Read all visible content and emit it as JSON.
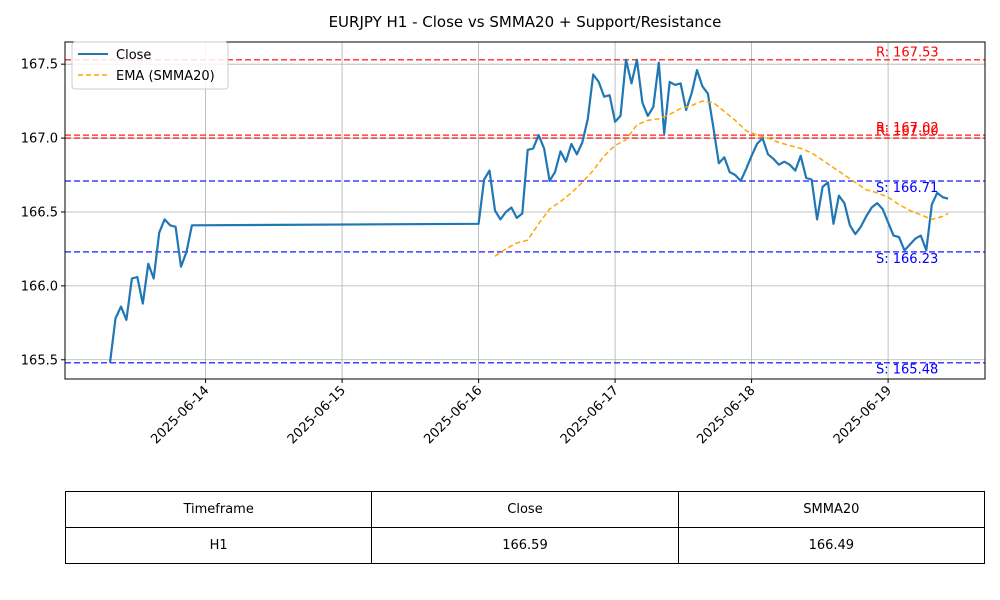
{
  "chart_data": {
    "type": "line",
    "title": "EURJPY H1 - Close vs SMMA20 + Support/Resistance",
    "x_ticks": [
      "2025-06-14",
      "2025-06-15",
      "2025-06-16",
      "2025-06-17",
      "2025-06-18",
      "2025-06-19"
    ],
    "y_ticks": [
      "165.5",
      "166.0",
      "166.5",
      "167.0",
      "167.5"
    ],
    "ylim": [
      165.37,
      167.65
    ],
    "xlim_days_from_2025_06_13": [
      -0.03,
      6.71
    ],
    "grid": true,
    "legend_position": "top-left",
    "series": [
      {
        "name": "Close",
        "color": "#1f77b4",
        "style": "solid",
        "points": [
          [
            0.3,
            165.48
          ],
          [
            0.34,
            165.78
          ],
          [
            0.38,
            165.86
          ],
          [
            0.42,
            165.77
          ],
          [
            0.46,
            166.05
          ],
          [
            0.5,
            166.06
          ],
          [
            0.54,
            165.88
          ],
          [
            0.58,
            166.15
          ],
          [
            0.62,
            166.05
          ],
          [
            0.66,
            166.36
          ],
          [
            0.7,
            166.45
          ],
          [
            0.74,
            166.41
          ],
          [
            0.78,
            166.4
          ],
          [
            0.82,
            166.13
          ],
          [
            0.86,
            166.23
          ],
          [
            0.9,
            166.41
          ],
          [
            3.0,
            166.42
          ],
          [
            3.04,
            166.72
          ],
          [
            3.08,
            166.78
          ],
          [
            3.12,
            166.51
          ],
          [
            3.16,
            166.45
          ],
          [
            3.2,
            166.5
          ],
          [
            3.24,
            166.53
          ],
          [
            3.28,
            166.46
          ],
          [
            3.32,
            166.49
          ],
          [
            3.36,
            166.92
          ],
          [
            3.4,
            166.93
          ],
          [
            3.44,
            167.02
          ],
          [
            3.48,
            166.93
          ],
          [
            3.52,
            166.71
          ],
          [
            3.56,
            166.77
          ],
          [
            3.6,
            166.91
          ],
          [
            3.64,
            166.84
          ],
          [
            3.68,
            166.96
          ],
          [
            3.72,
            166.89
          ],
          [
            3.76,
            166.97
          ],
          [
            3.8,
            167.13
          ],
          [
            3.84,
            167.43
          ],
          [
            3.88,
            167.38
          ],
          [
            3.92,
            167.28
          ],
          [
            3.96,
            167.29
          ],
          [
            4.0,
            167.11
          ],
          [
            4.04,
            167.15
          ],
          [
            4.08,
            167.53
          ],
          [
            4.12,
            167.37
          ],
          [
            4.16,
            167.53
          ],
          [
            4.2,
            167.24
          ],
          [
            4.24,
            167.15
          ],
          [
            4.28,
            167.21
          ],
          [
            4.32,
            167.51
          ],
          [
            4.36,
            167.03
          ],
          [
            4.4,
            167.38
          ],
          [
            4.44,
            167.36
          ],
          [
            4.48,
            167.37
          ],
          [
            4.52,
            167.19
          ],
          [
            4.56,
            167.3
          ],
          [
            4.6,
            167.46
          ],
          [
            4.64,
            167.35
          ],
          [
            4.68,
            167.3
          ],
          [
            4.72,
            167.07
          ],
          [
            4.76,
            166.83
          ],
          [
            4.8,
            166.87
          ],
          [
            4.84,
            166.77
          ],
          [
            4.88,
            166.75
          ],
          [
            4.92,
            166.71
          ],
          [
            4.96,
            166.79
          ],
          [
            5.0,
            166.88
          ],
          [
            5.04,
            166.96
          ],
          [
            5.08,
            167.0
          ],
          [
            5.12,
            166.89
          ],
          [
            5.16,
            166.86
          ],
          [
            5.2,
            166.82
          ],
          [
            5.24,
            166.84
          ],
          [
            5.28,
            166.82
          ],
          [
            5.32,
            166.78
          ],
          [
            5.36,
            166.88
          ],
          [
            5.4,
            166.73
          ],
          [
            5.44,
            166.72
          ],
          [
            5.48,
            166.45
          ],
          [
            5.52,
            166.67
          ],
          [
            5.56,
            166.7
          ],
          [
            5.6,
            166.42
          ],
          [
            5.64,
            166.61
          ],
          [
            5.68,
            166.56
          ],
          [
            5.72,
            166.41
          ],
          [
            5.76,
            166.35
          ],
          [
            5.8,
            166.4
          ],
          [
            5.84,
            166.47
          ],
          [
            5.88,
            166.53
          ],
          [
            5.92,
            166.56
          ],
          [
            5.96,
            166.52
          ],
          [
            6.0,
            166.43
          ],
          [
            6.04,
            166.34
          ],
          [
            6.08,
            166.33
          ],
          [
            6.12,
            166.24
          ],
          [
            6.16,
            166.28
          ],
          [
            6.2,
            166.32
          ],
          [
            6.24,
            166.34
          ],
          [
            6.28,
            166.24
          ],
          [
            6.32,
            166.55
          ],
          [
            6.36,
            166.63
          ],
          [
            6.4,
            166.6
          ],
          [
            6.44,
            166.59
          ]
        ]
      },
      {
        "name": "EMA (SMMA20)",
        "color": "#ffa500",
        "style": "dashed",
        "points": [
          [
            3.12,
            166.2
          ],
          [
            3.2,
            166.25
          ],
          [
            3.28,
            166.29
          ],
          [
            3.36,
            166.31
          ],
          [
            3.44,
            166.42
          ],
          [
            3.52,
            166.52
          ],
          [
            3.6,
            166.57
          ],
          [
            3.68,
            166.63
          ],
          [
            3.76,
            166.7
          ],
          [
            3.84,
            166.78
          ],
          [
            3.92,
            166.88
          ],
          [
            4.0,
            166.95
          ],
          [
            4.08,
            166.99
          ],
          [
            4.16,
            167.09
          ],
          [
            4.24,
            167.12
          ],
          [
            4.32,
            167.13
          ],
          [
            4.4,
            167.16
          ],
          [
            4.48,
            167.2
          ],
          [
            4.56,
            167.22
          ],
          [
            4.64,
            167.25
          ],
          [
            4.72,
            167.24
          ],
          [
            4.8,
            167.18
          ],
          [
            4.88,
            167.12
          ],
          [
            4.96,
            167.05
          ],
          [
            5.04,
            167.02
          ],
          [
            5.12,
            167.0
          ],
          [
            5.2,
            166.97
          ],
          [
            5.28,
            166.95
          ],
          [
            5.36,
            166.93
          ],
          [
            5.44,
            166.9
          ],
          [
            5.52,
            166.85
          ],
          [
            5.6,
            166.8
          ],
          [
            5.68,
            166.75
          ],
          [
            5.76,
            166.7
          ],
          [
            5.84,
            166.65
          ],
          [
            5.92,
            166.63
          ],
          [
            6.0,
            166.6
          ],
          [
            6.08,
            166.55
          ],
          [
            6.16,
            166.51
          ],
          [
            6.24,
            166.48
          ],
          [
            6.32,
            166.45
          ],
          [
            6.4,
            166.47
          ],
          [
            6.44,
            166.49
          ]
        ]
      }
    ],
    "levels": [
      {
        "kind": "resistance",
        "value": 167.53,
        "label": "R: 167.53",
        "color": "#ff0000"
      },
      {
        "kind": "resistance",
        "value": 167.02,
        "label": "R: 167.02",
        "color": "#ff0000"
      },
      {
        "kind": "resistance",
        "value": 167.0,
        "label": "R: 167.00",
        "color": "#ff0000"
      },
      {
        "kind": "support",
        "value": 166.71,
        "label": "S: 166.71",
        "color": "#0000ff"
      },
      {
        "kind": "support",
        "value": 166.23,
        "label": "S: 166.23",
        "color": "#0000ff"
      },
      {
        "kind": "support",
        "value": 165.48,
        "label": "S: 165.48",
        "color": "#0000ff"
      }
    ]
  },
  "table": {
    "headers": [
      "Timeframe",
      "Close",
      "SMMA20"
    ],
    "row": [
      "H1",
      "166.59",
      "166.49"
    ]
  }
}
